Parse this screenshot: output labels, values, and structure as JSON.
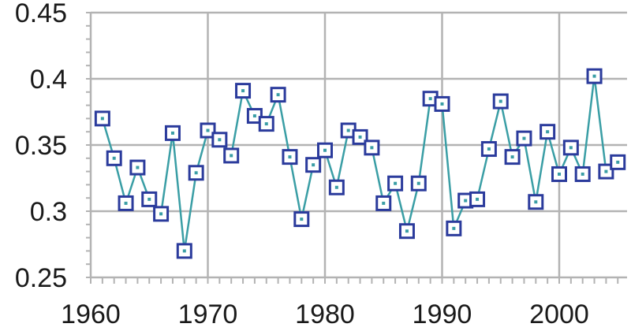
{
  "chart_data": {
    "type": "line",
    "title": "",
    "xlabel": "",
    "ylabel": "",
    "xlim": [
      1960,
      2005
    ],
    "ylim": [
      0.25,
      0.45
    ],
    "x_ticks": [
      "1960",
      "1970",
      "1980",
      "1990",
      "2000"
    ],
    "y_ticks": [
      "0.25",
      "0.3",
      "0.35",
      "0.4",
      "0.45"
    ],
    "grid": true,
    "legend": "none",
    "line_color": "#3a9ea5",
    "marker_color": "#2b3b9c",
    "grid_color": "#b3b3b3",
    "series": [
      {
        "x": [
          1961,
          1962,
          1963,
          1964,
          1965,
          1966,
          1967,
          1968,
          1969,
          1970,
          1971,
          1972,
          1973,
          1974,
          1975,
          1976,
          1977,
          1978,
          1979,
          1980,
          1981,
          1982,
          1983,
          1984,
          1985,
          1986,
          1987,
          1988,
          1989,
          1990,
          1991,
          1992,
          1993,
          1994,
          1995,
          1996,
          1997,
          1998,
          1999,
          2000,
          2001,
          2002,
          2003,
          2004,
          2005
        ],
        "y": [
          0.37,
          0.34,
          0.306,
          0.333,
          0.309,
          0.298,
          0.359,
          0.27,
          0.329,
          0.361,
          0.354,
          0.342,
          0.391,
          0.372,
          0.366,
          0.388,
          0.341,
          0.294,
          0.335,
          0.346,
          0.318,
          0.361,
          0.356,
          0.348,
          0.306,
          0.321,
          0.285,
          0.321,
          0.385,
          0.381,
          0.287,
          0.308,
          0.309,
          0.347,
          0.383,
          0.341,
          0.355,
          0.307,
          0.36,
          0.328,
          0.348,
          0.328,
          0.402,
          0.33,
          0.337
        ]
      }
    ]
  }
}
